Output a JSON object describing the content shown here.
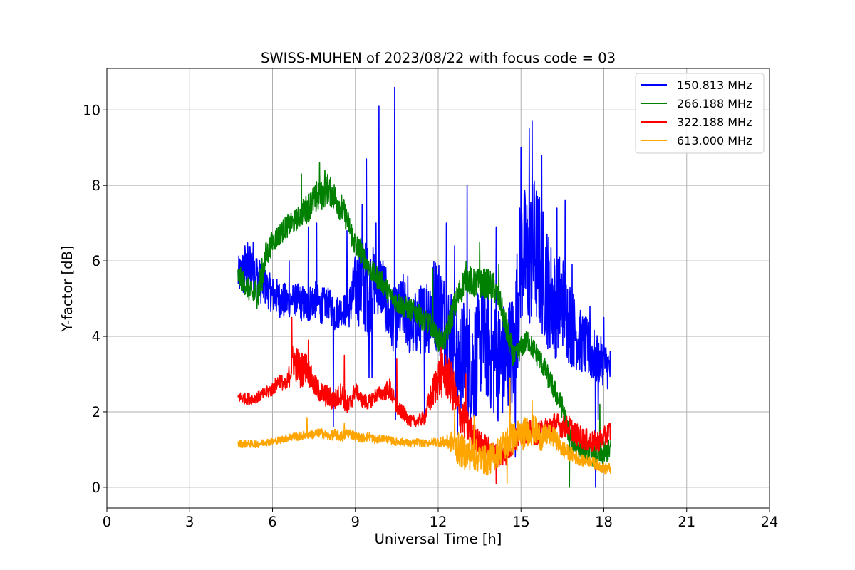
{
  "chart_data": {
    "type": "line",
    "title": "SWISS-MUHEN of 2023/08/22 with focus code = 03",
    "xlabel": "Universal Time [h]",
    "ylabel": "Y-factor [dB]",
    "xlim": [
      0,
      24
    ],
    "ylim": [
      -0.55,
      11.1
    ],
    "xticks": [
      0,
      3,
      6,
      9,
      12,
      15,
      18,
      21,
      24
    ],
    "xtick_labels": [
      "0",
      "3",
      "6",
      "9",
      "12",
      "15",
      "18",
      "21",
      "24"
    ],
    "yticks": [
      0,
      2,
      4,
      6,
      8,
      10
    ],
    "ytick_labels": [
      "0",
      "2",
      "4",
      "6",
      "8",
      "10"
    ],
    "grid": true,
    "legend_position": "top-right",
    "series": [
      {
        "name": "150.813 MHz",
        "color": "#0000ff",
        "x": [
          4.75,
          5.0,
          5.25,
          5.5,
          5.75,
          6.0,
          6.25,
          6.5,
          6.75,
          7.0,
          7.25,
          7.5,
          7.75,
          8.0,
          8.25,
          8.5,
          8.75,
          9.0,
          9.25,
          9.5,
          9.75,
          10.0,
          10.25,
          10.5,
          10.75,
          11.0,
          11.25,
          11.5,
          11.75,
          12.0,
          12.25,
          12.5,
          12.75,
          13.0,
          13.25,
          13.5,
          13.75,
          14.0,
          14.25,
          14.5,
          14.75,
          15.0,
          15.25,
          15.5,
          15.75,
          16.0,
          16.25,
          16.5,
          16.75,
          17.0,
          17.25,
          17.5,
          17.75,
          18.0,
          18.25
        ],
        "center": [
          5.6,
          5.7,
          5.9,
          5.5,
          5.3,
          5.1,
          5.0,
          4.9,
          5.0,
          4.9,
          4.8,
          5.0,
          4.8,
          4.9,
          4.6,
          4.7,
          4.7,
          5.3,
          5.4,
          5.2,
          5.5,
          5.3,
          4.4,
          4.5,
          4.8,
          4.2,
          4.4,
          4.5,
          4.8,
          4.9,
          4.3,
          3.9,
          3.4,
          3.5,
          3.2,
          3.8,
          3.9,
          3.4,
          3.3,
          3.4,
          3.6,
          6.2,
          6.0,
          6.3,
          5.8,
          5.2,
          4.8,
          5.0,
          4.4,
          4.0,
          3.8,
          3.6,
          3.4,
          3.3,
          3.1
        ],
        "amp": [
          0.5,
          0.7,
          0.8,
          0.6,
          0.5,
          0.5,
          0.5,
          0.5,
          0.4,
          0.5,
          0.5,
          0.5,
          0.5,
          0.4,
          0.5,
          0.4,
          0.5,
          0.9,
          1.3,
          1.2,
          0.9,
          0.9,
          0.9,
          0.8,
          0.9,
          0.8,
          0.9,
          1.0,
          1.3,
          1.3,
          1.4,
          1.4,
          1.4,
          1.6,
          1.7,
          1.5,
          1.6,
          1.6,
          1.6,
          1.6,
          1.7,
          1.9,
          1.9,
          2.0,
          1.8,
          1.6,
          1.4,
          1.3,
          1.2,
          0.9,
          0.8,
          0.8,
          0.7,
          0.6,
          0.6
        ],
        "spikes": [
          [
            5.0,
            6.4
          ],
          [
            6.6,
            6.0
          ],
          [
            7.3,
            6.9
          ],
          [
            7.6,
            7.0
          ],
          [
            8.2,
            1.6
          ],
          [
            8.7,
            6.8
          ],
          [
            9.25,
            7.5
          ],
          [
            9.4,
            8.7
          ],
          [
            9.5,
            2.9
          ],
          [
            9.6,
            2.9
          ],
          [
            9.75,
            7.0
          ],
          [
            9.85,
            10.1
          ],
          [
            10.42,
            10.6
          ],
          [
            10.45,
            1.8
          ],
          [
            10.9,
            5.6
          ],
          [
            11.5,
            1.8
          ],
          [
            12.3,
            7.0
          ],
          [
            12.6,
            6.4
          ],
          [
            12.7,
            1.4
          ],
          [
            13.0,
            2.1
          ],
          [
            13.05,
            8.0
          ],
          [
            13.4,
            1.9
          ],
          [
            13.5,
            3.4
          ],
          [
            14.1,
            6.9
          ],
          [
            14.8,
            0.8
          ],
          [
            15.0,
            9.0
          ],
          [
            15.3,
            9.5
          ],
          [
            15.4,
            9.7
          ],
          [
            15.75,
            8.8
          ],
          [
            16.3,
            7.4
          ],
          [
            16.6,
            7.6
          ],
          [
            16.85,
            5.9
          ],
          [
            17.5,
            4.8
          ],
          [
            17.7,
            0.0
          ],
          [
            17.8,
            1.8
          ],
          [
            18.0,
            4.5
          ]
        ]
      },
      {
        "name": "266.188 MHz",
        "color": "#008000",
        "x": [
          4.75,
          5.0,
          5.25,
          5.5,
          5.75,
          6.0,
          6.25,
          6.5,
          6.75,
          7.0,
          7.25,
          7.5,
          7.75,
          8.0,
          8.25,
          8.5,
          8.75,
          9.0,
          9.25,
          9.5,
          9.75,
          10.0,
          10.25,
          10.5,
          10.75,
          11.0,
          11.25,
          11.5,
          11.75,
          12.0,
          12.25,
          12.5,
          12.75,
          13.0,
          13.25,
          13.5,
          13.75,
          14.0,
          14.25,
          14.5,
          14.75,
          15.0,
          15.25,
          15.5,
          15.75,
          16.0,
          16.25,
          16.5,
          16.75,
          17.0,
          17.25,
          17.5,
          17.75,
          18.0,
          18.25
        ],
        "center": [
          5.6,
          5.4,
          5.1,
          5.2,
          6.1,
          6.5,
          6.7,
          6.9,
          7.0,
          7.2,
          7.4,
          7.6,
          7.7,
          7.9,
          7.7,
          7.4,
          7.0,
          6.4,
          6.2,
          5.8,
          5.6,
          5.4,
          5.1,
          4.9,
          4.8,
          4.7,
          4.6,
          4.4,
          4.3,
          3.9,
          3.9,
          4.6,
          5.1,
          5.6,
          5.4,
          5.4,
          5.4,
          5.3,
          4.9,
          4.1,
          3.4,
          3.7,
          3.9,
          3.6,
          3.3,
          2.9,
          2.5,
          2.1,
          1.4,
          1.1,
          1.0,
          0.9,
          0.8,
          0.9,
          1.0
        ],
        "amp": [
          0.3,
          0.3,
          0.3,
          0.5,
          0.4,
          0.3,
          0.3,
          0.3,
          0.3,
          0.3,
          0.4,
          0.4,
          0.4,
          0.4,
          0.4,
          0.4,
          0.3,
          0.4,
          0.3,
          0.3,
          0.3,
          0.3,
          0.3,
          0.3,
          0.3,
          0.3,
          0.3,
          0.3,
          0.3,
          0.3,
          0.3,
          0.4,
          0.4,
          0.4,
          0.4,
          0.4,
          0.4,
          0.4,
          0.3,
          0.4,
          0.3,
          0.3,
          0.3,
          0.3,
          0.3,
          0.3,
          0.3,
          0.3,
          0.3,
          0.3,
          0.3,
          0.3,
          0.3,
          0.3,
          0.3
        ],
        "spikes": [
          [
            7.05,
            8.3
          ],
          [
            7.6,
            8.1
          ],
          [
            7.7,
            8.6
          ],
          [
            7.9,
            8.4
          ],
          [
            8.0,
            8.3
          ],
          [
            9.2,
            6.6
          ],
          [
            11.8,
            5.8
          ],
          [
            13.5,
            6.5
          ],
          [
            14.2,
            5.9
          ],
          [
            16.45,
            2.3
          ],
          [
            16.75,
            0.0
          ],
          [
            17.85,
            2.2
          ]
        ]
      },
      {
        "name": "322.188 MHz",
        "color": "#ff0000",
        "x": [
          4.75,
          5.0,
          5.25,
          5.5,
          5.75,
          6.0,
          6.25,
          6.5,
          6.75,
          7.0,
          7.25,
          7.5,
          7.75,
          8.0,
          8.25,
          8.5,
          8.75,
          9.0,
          9.25,
          9.5,
          9.75,
          10.0,
          10.25,
          10.5,
          10.75,
          11.0,
          11.25,
          11.5,
          11.75,
          12.0,
          12.25,
          12.5,
          12.75,
          13.0,
          13.25,
          13.5,
          13.75,
          14.0,
          14.25,
          14.5,
          14.75,
          15.0,
          15.25,
          15.5,
          15.75,
          16.0,
          16.25,
          16.5,
          16.75,
          17.0,
          17.25,
          17.5,
          17.75,
          18.0,
          18.25
        ],
        "center": [
          2.4,
          2.35,
          2.35,
          2.4,
          2.5,
          2.6,
          2.85,
          2.65,
          3.4,
          3.1,
          3.2,
          2.7,
          2.5,
          2.4,
          2.3,
          2.5,
          2.1,
          2.6,
          2.3,
          2.25,
          2.45,
          2.5,
          2.6,
          2.1,
          1.95,
          1.75,
          1.75,
          1.85,
          2.4,
          2.9,
          3.0,
          2.7,
          2.0,
          1.7,
          1.4,
          1.2,
          1.1,
          0.9,
          0.8,
          0.9,
          1.2,
          1.4,
          1.5,
          1.4,
          1.5,
          1.6,
          1.7,
          1.6,
          1.6,
          1.4,
          1.3,
          1.2,
          1.2,
          1.3,
          1.5
        ],
        "amp": [
          0.15,
          0.15,
          0.15,
          0.15,
          0.15,
          0.2,
          0.2,
          0.2,
          0.5,
          0.5,
          0.4,
          0.3,
          0.3,
          0.3,
          0.3,
          0.3,
          0.3,
          0.2,
          0.2,
          0.2,
          0.2,
          0.2,
          0.3,
          0.2,
          0.2,
          0.15,
          0.15,
          0.2,
          0.4,
          0.6,
          0.6,
          0.6,
          0.5,
          0.5,
          0.4,
          0.3,
          0.3,
          0.3,
          0.3,
          0.3,
          0.3,
          0.3,
          0.3,
          0.3,
          0.3,
          0.3,
          0.3,
          0.3,
          0.3,
          0.3,
          0.3,
          0.3,
          0.3,
          0.3,
          0.3
        ],
        "spikes": [
          [
            6.7,
            4.5
          ],
          [
            7.3,
            3.9
          ],
          [
            8.6,
            3.5
          ],
          [
            10.5,
            3.4
          ],
          [
            12.1,
            3.7
          ],
          [
            13.0,
            3.0
          ],
          [
            14.1,
            0.1
          ],
          [
            15.7,
            1.7
          ]
        ]
      },
      {
        "name": "613.000 MHz",
        "color": "#ffa500",
        "x": [
          4.75,
          5.0,
          5.25,
          5.5,
          5.75,
          6.0,
          6.25,
          6.5,
          6.75,
          7.0,
          7.25,
          7.5,
          7.75,
          8.0,
          8.25,
          8.5,
          8.75,
          9.0,
          9.25,
          9.5,
          9.75,
          10.0,
          10.25,
          10.5,
          10.75,
          11.0,
          11.25,
          11.5,
          11.75,
          12.0,
          12.25,
          12.5,
          12.75,
          13.0,
          13.25,
          13.5,
          13.75,
          14.0,
          14.25,
          14.5,
          14.75,
          15.0,
          15.25,
          15.5,
          15.75,
          16.0,
          16.25,
          16.5,
          16.75,
          17.0,
          17.25,
          17.5,
          17.75,
          18.0,
          18.25
        ],
        "center": [
          1.15,
          1.15,
          1.15,
          1.15,
          1.2,
          1.2,
          1.25,
          1.3,
          1.35,
          1.35,
          1.4,
          1.4,
          1.45,
          1.35,
          1.4,
          1.35,
          1.45,
          1.35,
          1.3,
          1.35,
          1.25,
          1.3,
          1.25,
          1.2,
          1.2,
          1.15,
          1.2,
          1.15,
          1.2,
          1.2,
          1.2,
          1.2,
          1.0,
          0.9,
          0.9,
          0.8,
          0.7,
          0.8,
          1.0,
          1.2,
          1.3,
          1.4,
          1.5,
          1.5,
          1.3,
          1.4,
          1.3,
          1.0,
          0.9,
          0.8,
          0.7,
          0.7,
          0.6,
          0.5,
          0.5
        ],
        "amp": [
          0.1,
          0.1,
          0.1,
          0.1,
          0.1,
          0.1,
          0.1,
          0.1,
          0.12,
          0.12,
          0.12,
          0.12,
          0.12,
          0.12,
          0.15,
          0.15,
          0.15,
          0.12,
          0.12,
          0.12,
          0.12,
          0.1,
          0.1,
          0.1,
          0.1,
          0.1,
          0.1,
          0.1,
          0.1,
          0.12,
          0.15,
          0.3,
          0.45,
          0.45,
          0.45,
          0.4,
          0.4,
          0.4,
          0.4,
          0.45,
          0.45,
          0.45,
          0.4,
          0.4,
          0.35,
          0.3,
          0.25,
          0.25,
          0.2,
          0.2,
          0.15,
          0.15,
          0.15,
          0.15,
          0.15
        ],
        "spikes": [
          [
            7.25,
            1.85
          ],
          [
            8.6,
            1.7
          ],
          [
            12.6,
            2.1
          ],
          [
            13.3,
            1.9
          ],
          [
            14.6,
            2.9
          ],
          [
            14.5,
            0.1
          ],
          [
            15.4,
            2.3
          ]
        ]
      }
    ]
  }
}
